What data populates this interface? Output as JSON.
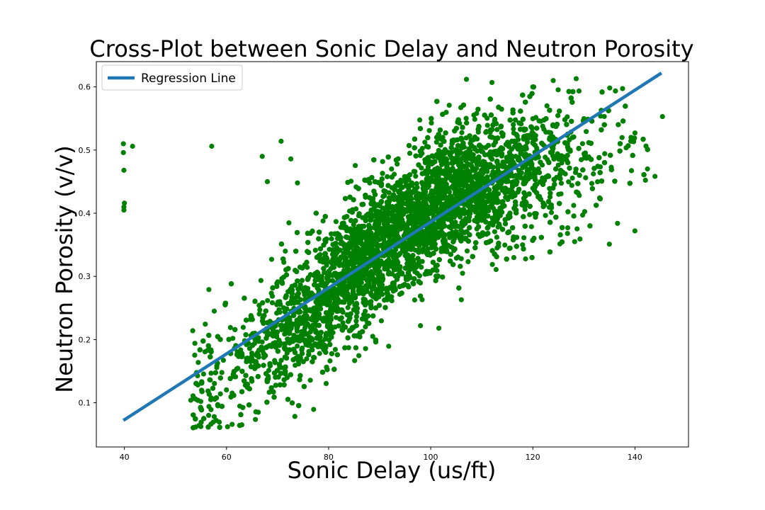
{
  "chart_data": {
    "type": "scatter",
    "title": "Cross-Plot between Sonic Delay and Neutron Porosity",
    "xlabel": "Sonic Delay (us/ft)",
    "ylabel": "Neutron Porosity (v/v)",
    "xlim": [
      34.5,
      150.5
    ],
    "ylim": [
      0.03,
      0.64
    ],
    "xticks": [
      40,
      60,
      80,
      100,
      120,
      140
    ],
    "yticks": [
      0.1,
      0.2,
      0.3,
      0.4,
      0.5,
      0.6
    ],
    "xtick_labels": [
      "40",
      "60",
      "80",
      "100",
      "120",
      "140"
    ],
    "ytick_labels": [
      "0.1",
      "0.2",
      "0.3",
      "0.4",
      "0.5",
      "0.6"
    ],
    "grid": false,
    "legend_position": "top-left",
    "colors": {
      "points": "#008000",
      "regression": "#1f77b4"
    },
    "series": [
      {
        "type": "scatter",
        "points": [
          [
            39.8,
            0.51
          ],
          [
            39.8,
            0.496
          ],
          [
            39.9,
            0.468
          ],
          [
            40.0,
            0.416
          ],
          [
            39.9,
            0.41
          ],
          [
            39.9,
            0.405
          ],
          [
            41.6,
            0.506
          ],
          [
            57.1,
            0.506
          ],
          [
            57.6,
            0.245
          ],
          [
            67.0,
            0.49
          ],
          [
            70.7,
            0.514
          ],
          [
            72.6,
            0.486
          ],
          [
            73.9,
            0.448
          ],
          [
            68.0,
            0.45
          ],
          [
            53.0,
            0.104
          ],
          [
            55.0,
            0.09
          ],
          [
            56.5,
            0.08
          ],
          [
            58.0,
            0.072
          ],
          [
            60.2,
            0.062
          ],
          [
            63.0,
            0.065
          ],
          [
            101.6,
            0.218
          ],
          [
            98.0,
            0.222
          ],
          [
            106.0,
            0.263
          ],
          [
            107.0,
            0.612
          ],
          [
            112.0,
            0.607
          ],
          [
            120.0,
            0.6
          ],
          [
            124.0,
            0.61
          ],
          [
            128.5,
            0.613
          ],
          [
            136.6,
            0.384
          ],
          [
            140.0,
            0.372
          ],
          [
            135.0,
            0.351
          ],
          [
            128.2,
            0.355
          ],
          [
            145.4,
            0.553
          ],
          [
            118.0,
            0.35
          ],
          [
            113.0,
            0.345
          ]
        ]
      },
      {
        "type": "line",
        "name": "Regression Line",
        "x": [
          39.8,
          145.2
        ],
        "y": [
          0.072,
          0.622
        ]
      }
    ],
    "cloud": {
      "count": 9000,
      "x_range": [
        53,
        145
      ],
      "center_x": 95,
      "trend": {
        "x": [
          55,
          65,
          75,
          85,
          95,
          105,
          115,
          125,
          135,
          142
        ],
        "y": [
          0.12,
          0.17,
          0.24,
          0.31,
          0.38,
          0.43,
          0.455,
          0.48,
          0.505,
          0.52
        ]
      },
      "spread_y": 0.055,
      "spread_x": 4.5
    }
  }
}
